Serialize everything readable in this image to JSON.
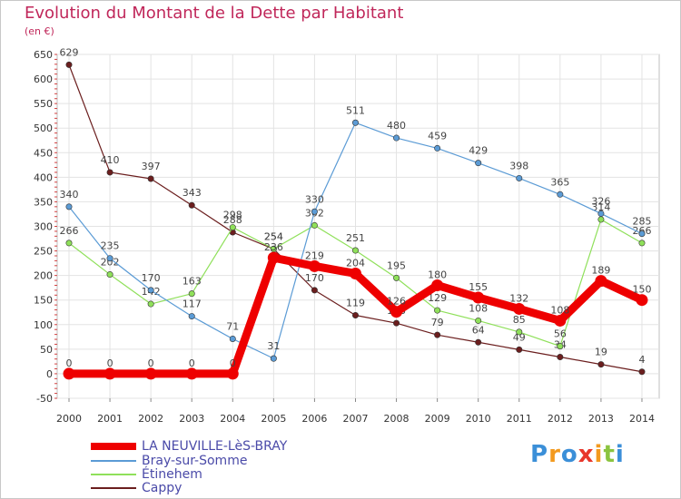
{
  "page": {
    "title": "Evolution du Montant de la Dette par Habitant",
    "subtitle": "(en €)",
    "brand": "Proxiti"
  },
  "chart_data": {
    "type": "line",
    "title": "Evolution du Montant de la Dette par Habitant",
    "subtitle": "(en €)",
    "xlabel": "",
    "ylabel": "",
    "x": [
      "2000",
      "2001",
      "2002",
      "2003",
      "2004",
      "2005",
      "2006",
      "2007",
      "2008",
      "2009",
      "2010",
      "2011",
      "2012",
      "2013",
      "2014"
    ],
    "ylim": [
      -50,
      650
    ],
    "yticks": [
      -50,
      0,
      50,
      100,
      150,
      200,
      250,
      300,
      350,
      400,
      450,
      500,
      550,
      600,
      650
    ],
    "grid": true,
    "legend_position": "bottom",
    "series": [
      {
        "name": "LA NEUVILLE-LèS-BRAY",
        "color": "#ee0000",
        "values": [
          0,
          0,
          0,
          0,
          0,
          236,
          219,
          204,
          126,
          180,
          155,
          132,
          108,
          189,
          150
        ]
      },
      {
        "name": "Bray-sur-Somme",
        "color": "#5b9bd5",
        "values": [
          340,
          235,
          170,
          117,
          71,
          31,
          330,
          511,
          480,
          459,
          429,
          398,
          365,
          326,
          285
        ]
      },
      {
        "name": "Étinehem",
        "color": "#8fe05a",
        "values": [
          266,
          202,
          142,
          163,
          298,
          254,
          302,
          251,
          195,
          129,
          108,
          85,
          56,
          314,
          266
        ]
      },
      {
        "name": "Cappy",
        "color": "#6b1e1e",
        "values": [
          629,
          410,
          397,
          343,
          288,
          254,
          170,
          119,
          103,
          79,
          64,
          49,
          34,
          19,
          4
        ]
      }
    ]
  }
}
